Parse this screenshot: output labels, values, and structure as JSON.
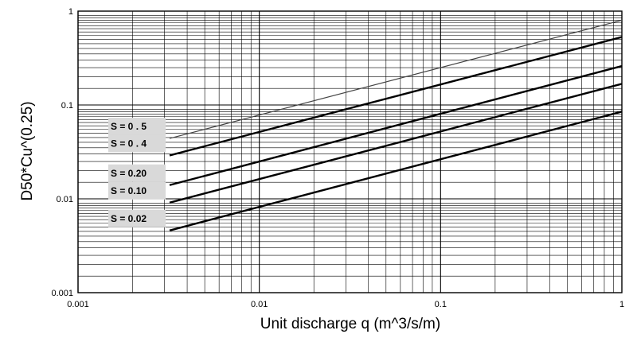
{
  "chart_data": {
    "type": "line",
    "title": "",
    "xlabel": "Unit discharge q (m^3/s/m)",
    "ylabel": "D50*Cu^(0.25)",
    "xscale": "log",
    "yscale": "log",
    "xlim": [
      0.001,
      1
    ],
    "ylim": [
      0.001,
      1
    ],
    "grid": true,
    "x_ticks": [
      {
        "value": 0.001,
        "label": "0.001"
      },
      {
        "value": 0.01,
        "label": "0.01"
      },
      {
        "value": 0.1,
        "label": "0.1"
      },
      {
        "value": 1,
        "label": "1"
      }
    ],
    "y_ticks": [
      {
        "value": 0.001,
        "label": "0.001"
      },
      {
        "value": 0.01,
        "label": "0.01"
      },
      {
        "value": 0.1,
        "label": "0.1"
      },
      {
        "value": 1,
        "label": "1"
      }
    ],
    "series": [
      {
        "name": "S = 0 . 5",
        "x": [
          0.0032,
          1
        ],
        "y": [
          0.044,
          0.8
        ],
        "style": "thin"
      },
      {
        "name": "S = 0 . 4",
        "x": [
          0.0032,
          1
        ],
        "y": [
          0.029,
          0.53
        ],
        "style": "thick"
      },
      {
        "name": "S = 0.20",
        "x": [
          0.0032,
          1
        ],
        "y": [
          0.014,
          0.26
        ],
        "style": "thick"
      },
      {
        "name": "S = 0.10",
        "x": [
          0.0032,
          1
        ],
        "y": [
          0.0091,
          0.168
        ],
        "style": "thick"
      },
      {
        "name": "S = 0.02",
        "x": [
          0.0032,
          1
        ],
        "y": [
          0.0046,
          0.085
        ],
        "style": "thick"
      }
    ]
  }
}
